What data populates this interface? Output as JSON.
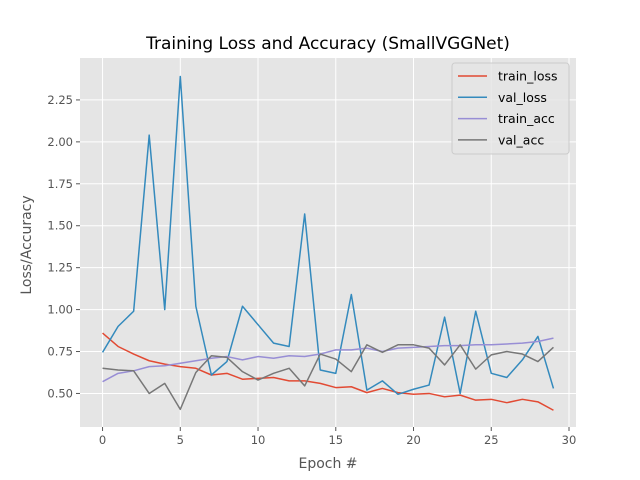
{
  "chart_data": {
    "type": "line",
    "title": "Training Loss and Accuracy (SmallVGGNet)",
    "xlabel": "Epoch #",
    "ylabel": "Loss/Accuracy",
    "xlim": [
      -1.45,
      30.45
    ],
    "ylim": [
      0.3,
      2.5
    ],
    "xticks": [
      0,
      5,
      10,
      15,
      20,
      25,
      30
    ],
    "yticks": [
      0.5,
      0.75,
      1.0,
      1.25,
      1.5,
      1.75,
      2.0,
      2.25
    ],
    "ytick_labels": [
      "0.50",
      "0.75",
      "1.00",
      "1.25",
      "1.50",
      "1.75",
      "2.00",
      "2.25"
    ],
    "grid": true,
    "style": "ggplot",
    "legend_position": "top-right",
    "x": [
      0,
      1,
      2,
      3,
      4,
      5,
      6,
      7,
      8,
      9,
      10,
      11,
      12,
      13,
      14,
      15,
      16,
      17,
      18,
      19,
      20,
      21,
      22,
      23,
      24,
      25,
      26,
      27,
      28,
      29
    ],
    "series": [
      {
        "name": "train_loss",
        "color": "#E24A33",
        "values": [
          0.86,
          0.78,
          0.735,
          0.695,
          0.675,
          0.66,
          0.65,
          0.61,
          0.62,
          0.585,
          0.59,
          0.595,
          0.575,
          0.575,
          0.56,
          0.535,
          0.54,
          0.505,
          0.53,
          0.505,
          0.495,
          0.5,
          0.48,
          0.49,
          0.46,
          0.465,
          0.445,
          0.465,
          0.45,
          0.4
        ]
      },
      {
        "name": "val_loss",
        "color": "#348ABD",
        "values": [
          0.745,
          0.9,
          0.99,
          2.04,
          1.0,
          2.39,
          1.02,
          0.61,
          0.69,
          1.02,
          0.91,
          0.8,
          0.78,
          1.57,
          0.64,
          0.62,
          1.09,
          0.52,
          0.575,
          0.495,
          0.525,
          0.55,
          0.955,
          0.5,
          0.99,
          0.62,
          0.595,
          0.7,
          0.84,
          0.53
        ]
      },
      {
        "name": "train_acc",
        "color": "#988ED5",
        "values": [
          0.57,
          0.62,
          0.635,
          0.66,
          0.665,
          0.68,
          0.695,
          0.71,
          0.72,
          0.7,
          0.72,
          0.71,
          0.725,
          0.72,
          0.735,
          0.76,
          0.76,
          0.77,
          0.75,
          0.77,
          0.775,
          0.78,
          0.785,
          0.785,
          0.79,
          0.79,
          0.795,
          0.8,
          0.81,
          0.83
        ]
      },
      {
        "name": "val_acc",
        "color": "#777777",
        "values": [
          0.65,
          0.64,
          0.635,
          0.5,
          0.56,
          0.405,
          0.625,
          0.725,
          0.715,
          0.63,
          0.58,
          0.62,
          0.65,
          0.545,
          0.735,
          0.705,
          0.63,
          0.79,
          0.745,
          0.79,
          0.79,
          0.77,
          0.67,
          0.79,
          0.645,
          0.73,
          0.75,
          0.735,
          0.69,
          0.775
        ]
      }
    ]
  }
}
